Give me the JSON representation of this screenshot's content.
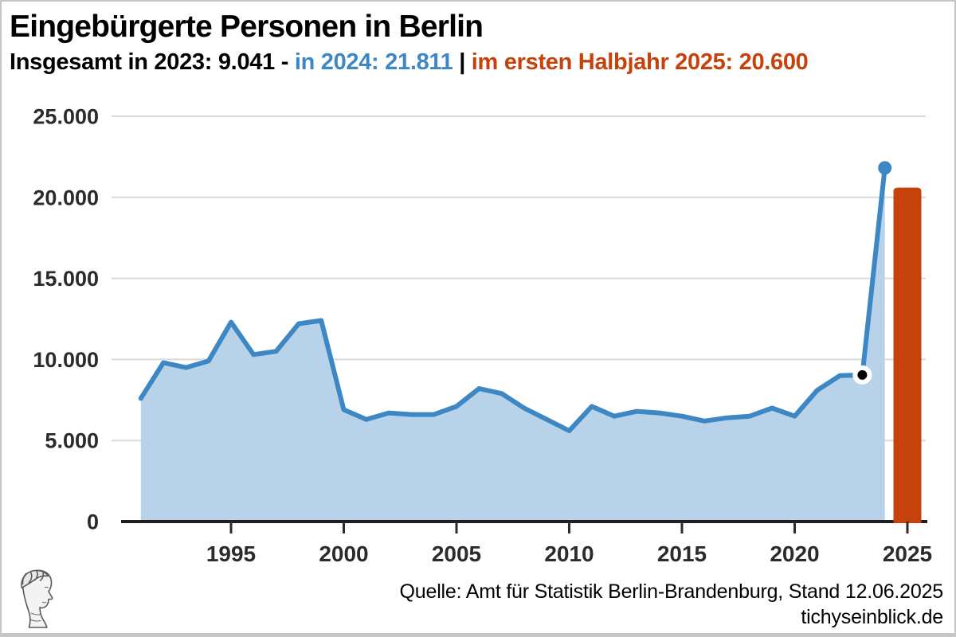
{
  "header": {
    "title": "Eingebürgerte Personen in Berlin",
    "subtitle_part1": "Insgesamt in 2023: 9.041",
    "subtitle_sep1": " - ",
    "subtitle_part2": "in 2024: 21.811",
    "subtitle_sep2": " | ",
    "subtitle_part3": "im ersten Halbjahr 2025: 20.600"
  },
  "footer": {
    "source": "Quelle: Amt für Statistik Berlin-Brandenburg, Stand 12.06.2025",
    "website": "tichyseinblick.de",
    "logo": "classical-head-logo"
  },
  "colors": {
    "accent_blue": "#3d87c4",
    "accent_orange": "#c6420c",
    "line": "#3d87c4",
    "area": "#b8d3e9",
    "bar": "#c6420c",
    "grid": "#d9d9d9",
    "axis": "#1f1f1f",
    "tick_text": "#2b2b2b",
    "marker_2023_fill": "#000000",
    "marker_2023_ring": "#ffffff",
    "marker_2024_fill": "#3d87c4"
  },
  "chart_data": {
    "type": "area-line with highlight bar",
    "title": "Eingebürgerte Personen in Berlin",
    "subtitle": "Insgesamt in 2023: 9.041 - in 2024: 21.811 | im ersten Halbjahr 2025: 20.600",
    "xlabel": "",
    "ylabel": "",
    "ylim": [
      0,
      25000
    ],
    "xlim": [
      1990.8,
      2026.6
    ],
    "grid": "horizontal",
    "legend": "none",
    "yticks": [
      {
        "value": 0,
        "label": "0"
      },
      {
        "value": 5000,
        "label": "5.000"
      },
      {
        "value": 10000,
        "label": "10.000"
      },
      {
        "value": 15000,
        "label": "15.000"
      },
      {
        "value": 20000,
        "label": "20.000"
      },
      {
        "value": 25000,
        "label": "25.000"
      }
    ],
    "xticks": [
      1995,
      2000,
      2005,
      2010,
      2015,
      2020,
      2025
    ],
    "line_series": {
      "x": [
        1991,
        1992,
        1993,
        1994,
        1995,
        1996,
        1997,
        1998,
        1999,
        2000,
        2001,
        2002,
        2003,
        2004,
        2005,
        2006,
        2007,
        2008,
        2009,
        2010,
        2011,
        2012,
        2013,
        2014,
        2015,
        2016,
        2017,
        2018,
        2019,
        2020,
        2021,
        2022,
        2023,
        2024
      ],
      "values": [
        7600,
        9800,
        9500,
        9900,
        12300,
        10300,
        10500,
        12200,
        12400,
        6900,
        6300,
        6700,
        6600,
        6600,
        7100,
        8200,
        7900,
        7000,
        6300,
        5600,
        7100,
        6500,
        6800,
        6700,
        6500,
        6200,
        6400,
        6500,
        7000,
        6500,
        8100,
        9000,
        9041,
        21811
      ]
    },
    "bar_series": {
      "x": [
        2025
      ],
      "values": [
        20600
      ]
    },
    "highlights": [
      {
        "year": 2023,
        "value": 9041,
        "marker": "black-dot-white-ring"
      },
      {
        "year": 2024,
        "value": 21811,
        "marker": "blue-dot"
      }
    ]
  }
}
